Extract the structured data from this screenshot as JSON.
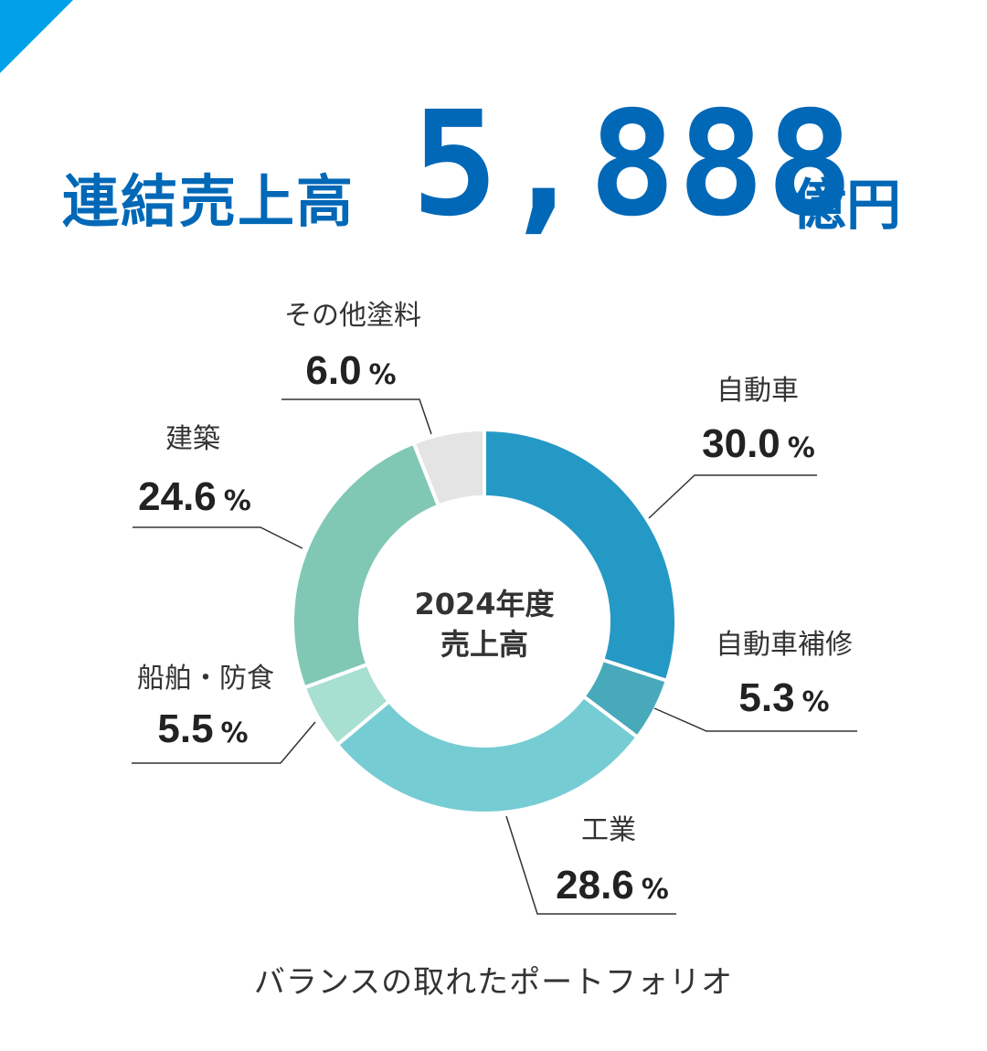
{
  "headline": {
    "label": "連結売上高",
    "value": "5,888",
    "unit": "億円"
  },
  "footer": {
    "caption": "バランスの取れたポートフォリオ"
  },
  "colors": {
    "accent": "#0068b7",
    "corner": "#00a0e9"
  },
  "chart_data": {
    "type": "pie",
    "center_label": [
      "2024年度",
      "売上高"
    ],
    "unit": "%",
    "segments": [
      {
        "name": "自動車",
        "value": 30.0,
        "display": "30.0",
        "color": "#2599c5"
      },
      {
        "name": "自動車補修",
        "value": 5.3,
        "display": "5.3",
        "color": "#48a9bb"
      },
      {
        "name": "工業",
        "value": 28.6,
        "display": "28.6",
        "color": "#76ccd3"
      },
      {
        "name": "船舶・防食",
        "value": 5.5,
        "display": "5.5",
        "color": "#a7dfd0"
      },
      {
        "name": "建築",
        "value": 24.6,
        "display": "24.6",
        "color": "#80c8b4"
      },
      {
        "name": "その他塗料",
        "value": 6.0,
        "display": "6.0",
        "color": "#e4e4e4"
      }
    ]
  }
}
